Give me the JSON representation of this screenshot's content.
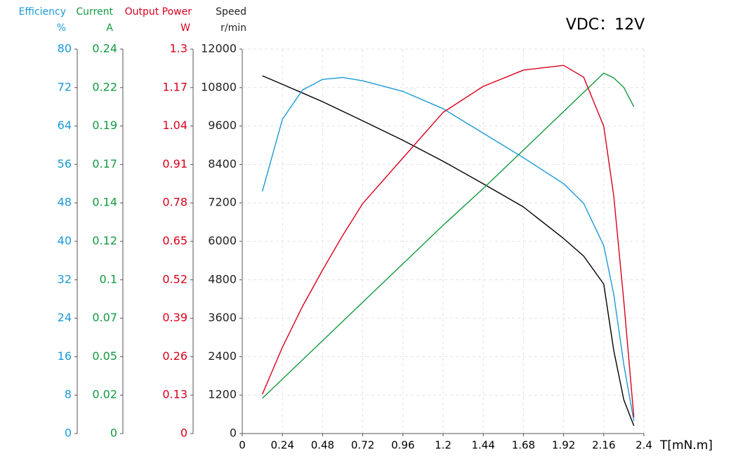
{
  "chart_data": {
    "type": "line",
    "annotation": "VDC：12V",
    "xlabel": "T[mN.m]",
    "xlim": [
      0,
      2.4
    ],
    "xticks": [
      0,
      0.24,
      0.48,
      0.72,
      0.96,
      1.2,
      1.44,
      1.68,
      1.92,
      2.16,
      2.4
    ],
    "grid": true,
    "axes": [
      {
        "name": "Efficiency",
        "unit": "%",
        "color": "#1a9ad6",
        "lim": [
          0,
          80
        ],
        "ticks": [
          0,
          8,
          16,
          24,
          32,
          40,
          48,
          56,
          64,
          72,
          80
        ]
      },
      {
        "name": "Current",
        "unit": "A",
        "color": "#129a3f",
        "lim": [
          0,
          0.24
        ],
        "ticks": [
          0,
          {
            "value": 0.024,
            "label": "0.02"
          },
          {
            "value": 0.048,
            "label": "0.05"
          },
          {
            "value": 0.072,
            "label": "0.07"
          },
          {
            "value": 0.096,
            "label": "0.1"
          },
          0.12,
          {
            "value": 0.144,
            "label": "0.14"
          },
          {
            "value": 0.168,
            "label": "0.17"
          },
          {
            "value": 0.192,
            "label": "0.19"
          },
          {
            "value": 0.216,
            "label": "0.22"
          },
          0.24
        ]
      },
      {
        "name": "Output Power",
        "unit": "W",
        "color": "#d9001b",
        "lim": [
          0,
          1.3
        ],
        "ticks": [
          0,
          0.13,
          0.26,
          0.39,
          0.52,
          0.65,
          0.78,
          0.91,
          1.04,
          1.17,
          1.3
        ]
      },
      {
        "name": "Speed",
        "unit": "r/min",
        "color": "#222222",
        "lim": [
          0,
          12000
        ],
        "ticks": [
          0,
          1200,
          2400,
          3600,
          4800,
          6000,
          7200,
          8400,
          9600,
          10800,
          12000
        ]
      }
    ],
    "x": [
      0.12,
      0.24,
      0.36,
      0.48,
      0.6,
      0.72,
      0.96,
      1.2,
      1.44,
      1.68,
      1.92,
      2.04,
      2.16,
      2.22,
      2.28,
      2.34
    ],
    "series": [
      {
        "name": "Speed",
        "color": "#000000",
        "axis": 3,
        "values": [
          11168,
          10900,
          10630,
          10358,
          10060,
          9760,
          9153,
          8500,
          7796,
          7073,
          6088,
          5540,
          4664,
          2584,
          1051,
          240
        ]
      },
      {
        "name": "Efficiency",
        "color": "#1a9ad6",
        "axis": 0,
        "values": [
          50.4,
          65.4,
          71.5,
          73.7,
          74.1,
          73.4,
          71.2,
          67.6,
          62.5,
          57.4,
          52,
          47.9,
          39.1,
          28.9,
          14.3,
          2.6
        ]
      },
      {
        "name": "Current",
        "color": "#129a3f",
        "axis": 1,
        "values": [
          0.022,
          0.034,
          0.046,
          0.058,
          0.07,
          0.082,
          0.106,
          0.13,
          0.153,
          0.177,
          0.201,
          0.213,
          0.225,
          0.222,
          0.216,
          0.204
        ]
      },
      {
        "name": "Output Power",
        "color": "#d9001b",
        "axis": 2,
        "values": [
          0.133,
          0.292,
          0.43,
          0.553,
          0.67,
          0.778,
          0.932,
          1.086,
          1.174,
          1.229,
          1.245,
          1.205,
          1.039,
          0.802,
          0.446,
          0.055
        ]
      }
    ]
  }
}
